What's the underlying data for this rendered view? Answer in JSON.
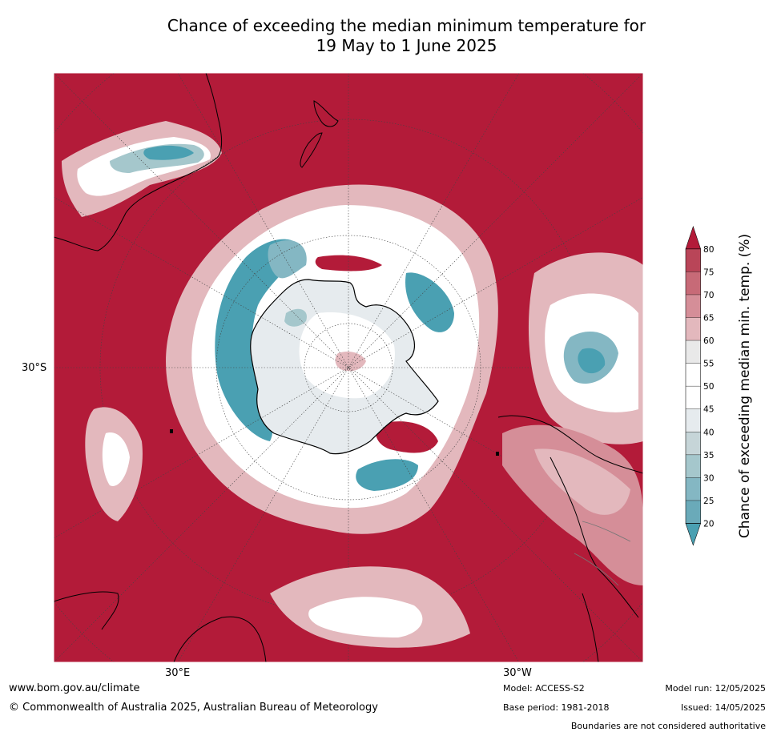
{
  "title_line1": "Chance of exceeding the median minimum temperature for",
  "title_line2": "19 May to 1 June 2025",
  "axis_labels": {
    "lat_30s": "30°S",
    "lon_30e": "30°E",
    "lon_30w": "30°W"
  },
  "colorbar": {
    "label": "Chance of exceeding median min. temp. (%)",
    "ticks": [
      "20",
      "25",
      "30",
      "35",
      "40",
      "45",
      "50",
      "55",
      "60",
      "65",
      "70",
      "75",
      "80"
    ],
    "colors": [
      "#4aa0b2",
      "#6aaab9",
      "#84b7c3",
      "#a5c7cc",
      "#c6d5d8",
      "#e6ebee",
      "#ffffff",
      "#ffffff",
      "#e9e9e9",
      "#e3b8bd",
      "#d58e98",
      "#c76a77",
      "#b94558",
      "#b31b39"
    ],
    "extend": "both"
  },
  "footer": {
    "website": "www.bom.gov.au/climate",
    "copyright": "© Commonwealth of Australia 2025, Australian Bureau of Meteorology",
    "model": "Model: ACCESS-S2",
    "base_period": "Base period: 1981-2018",
    "model_run": "Model run: 12/05/2025",
    "issued": "Issued: 14/05/2025",
    "disclaimer": "Boundaries are not considered authoritative"
  }
}
